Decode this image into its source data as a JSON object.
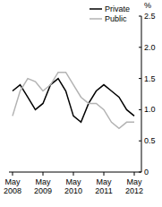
{
  "chart_data": {
    "type": "line",
    "y_label": "%",
    "categories": [
      "May 2008",
      null,
      null,
      null,
      "May 2009",
      null,
      null,
      null,
      "May 2010",
      null,
      null,
      null,
      "May 2011",
      null,
      null,
      null,
      "May 2012"
    ],
    "series": [
      {
        "name": "Private",
        "color": "#000000",
        "values": [
          1.3,
          1.4,
          1.2,
          1.0,
          1.1,
          1.4,
          1.5,
          1.3,
          0.9,
          0.8,
          1.1,
          1.3,
          1.4,
          1.3,
          1.2,
          1.0,
          0.9
        ]
      },
      {
        "name": "Public",
        "color": "#b3b3b3",
        "values": [
          0.9,
          1.3,
          1.5,
          1.45,
          1.3,
          1.4,
          1.6,
          1.6,
          1.4,
          1.2,
          1.1,
          1.1,
          1.0,
          0.8,
          0.7,
          0.8,
          0.8
        ]
      }
    ],
    "ylim": [
      0,
      2.5
    ],
    "yticks": [
      0,
      0.5,
      {
        "value": 1,
        "label": "1.0"
      },
      1.5,
      {
        "value": 2,
        "label": "2.0"
      },
      2.5
    ],
    "legend": "top-right",
    "grid": false
  }
}
